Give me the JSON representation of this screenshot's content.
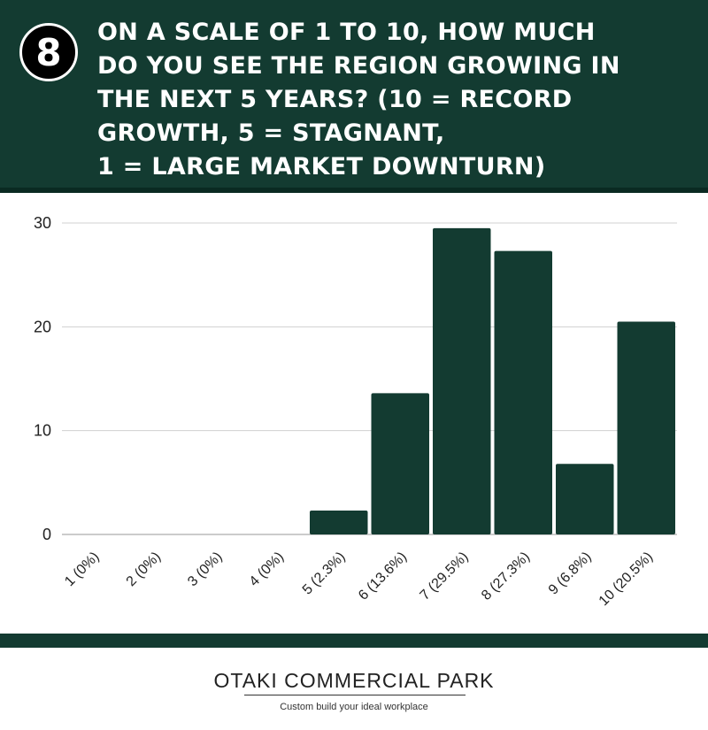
{
  "header": {
    "number": "8",
    "title": "ON A SCALE OF 1 TO 10, HOW MUCH\nDO YOU SEE THE REGION GROWING IN\nTHE NEXT 5 YEARS? (10 = RECORD\nGROWTH, 5 = STAGNANT,\n1 = LARGE  MARKET DOWNTURN)"
  },
  "chart_data": {
    "type": "bar",
    "categories": [
      "1 (0%)",
      "2 (0%)",
      "3 (0%)",
      "4 (0%)",
      "5 (2.3%)",
      "6 (13.6%)",
      "7 (29.5%)",
      "8 (27.3%)",
      "9 (6.8%)",
      "10 (20.5%)"
    ],
    "values": [
      0,
      0,
      0,
      0,
      2.3,
      13.6,
      29.5,
      27.3,
      6.8,
      20.5
    ],
    "yticks": [
      "0",
      "10",
      "20",
      "30"
    ],
    "ylim": [
      0,
      30
    ],
    "grid": true,
    "bar_color": "#133b31"
  },
  "footer": {
    "brand": "OTAKI COMMERCIAL PARK",
    "tagline": "Custom build your ideal workplace"
  },
  "colors": {
    "header_bg": "#133b31",
    "bar": "#133b31",
    "gridline": "#d0d0d0"
  }
}
